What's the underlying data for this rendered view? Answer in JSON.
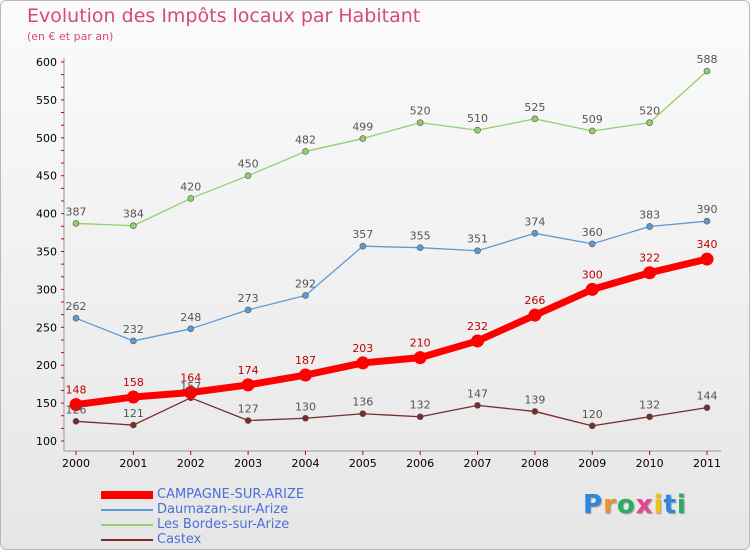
{
  "chart_data": {
    "type": "line",
    "title": "Evolution des Impôts locaux par Habitant",
    "subtitle": "(en € et par an)",
    "x": [
      "2000",
      "2001",
      "2002",
      "2003",
      "2004",
      "2005",
      "2006",
      "2007",
      "2008",
      "2009",
      "2010",
      "2011"
    ],
    "ylim": [
      100,
      600
    ],
    "yticks": [
      100,
      150,
      200,
      250,
      300,
      350,
      400,
      450,
      500,
      550,
      600
    ],
    "grid": false,
    "legend_position": "bottom-left",
    "series": [
      {
        "name": "CAMPAGNE-SUR-ARIZE",
        "color": "#ff0000",
        "thick": true,
        "values": [
          148,
          158,
          164,
          174,
          187,
          203,
          210,
          232,
          266,
          300,
          322,
          340
        ]
      },
      {
        "name": "Daumazan-sur-Arize",
        "color": "#5b9bd5",
        "thick": false,
        "values": [
          262,
          232,
          248,
          273,
          292,
          357,
          355,
          351,
          374,
          360,
          383,
          390
        ]
      },
      {
        "name": "Les Bordes-sur-Arize",
        "color": "#8fd16a",
        "thick": false,
        "values": [
          387,
          384,
          420,
          450,
          482,
          499,
          520,
          510,
          525,
          509,
          520,
          588
        ]
      },
      {
        "name": "Castex",
        "color": "#7a2b2b",
        "thick": false,
        "values": [
          126,
          121,
          157,
          127,
          130,
          136,
          132,
          147,
          139,
          120,
          132,
          144
        ]
      }
    ]
  },
  "logo": {
    "letters": [
      "P",
      "r",
      "o",
      "x",
      "i",
      "t",
      "i"
    ],
    "colors": [
      "#2e86de",
      "#f0932b",
      "#27ae60",
      "#e84393",
      "#f1c40f",
      "#2e86de",
      "#27ae60"
    ]
  }
}
